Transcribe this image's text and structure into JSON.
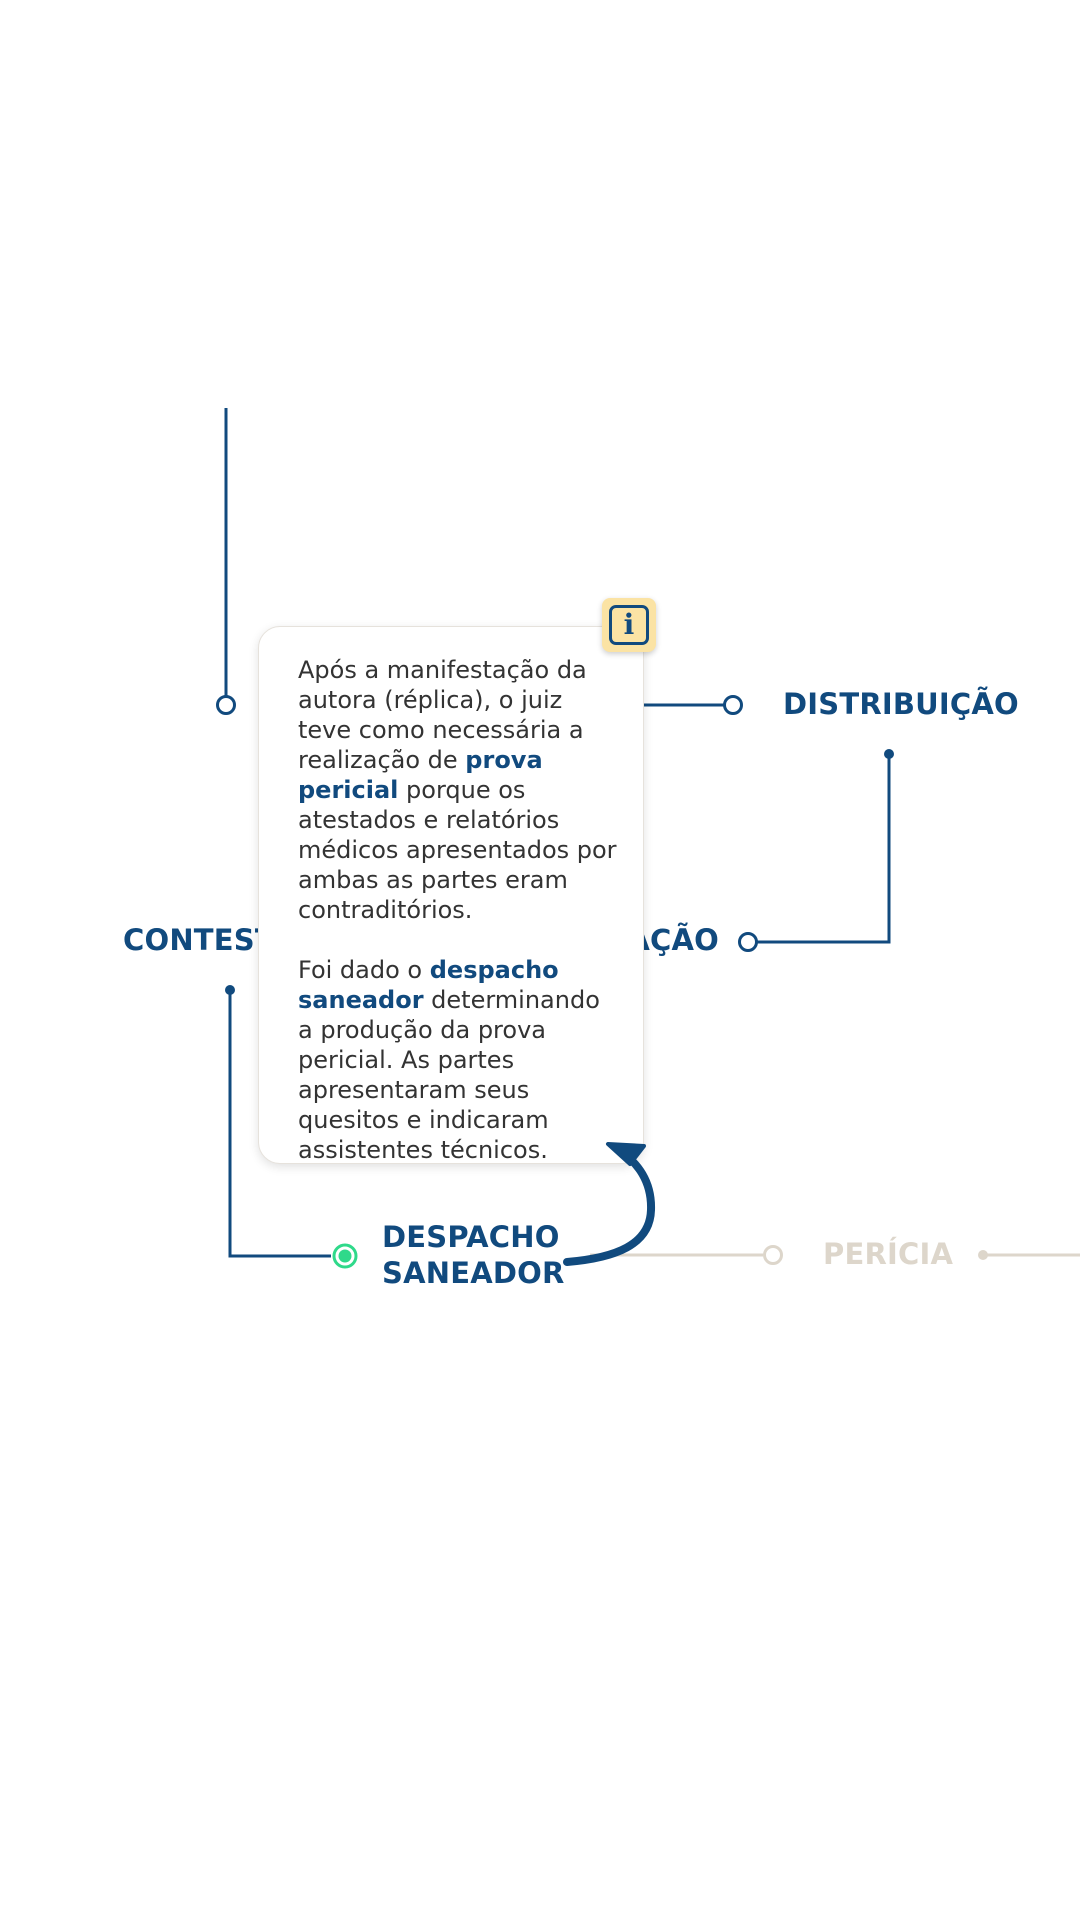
{
  "colors": {
    "primary": "#114a7e",
    "muted": "#ddd6cb",
    "active": "#2fd98a",
    "badge": "#fbe3a4",
    "text": "#333333"
  },
  "timeline": {
    "nodes": [
      {
        "id": "distribuicao",
        "label": "DISTRIBUIÇÃO",
        "state": "done"
      },
      {
        "id": "citacao",
        "label": "CITAÇÃO",
        "state": "done"
      },
      {
        "id": "contestacao",
        "label": "CONTESTAÇÃO",
        "state": "done"
      },
      {
        "id": "despacho-saneador",
        "label": "DESPACHO SANEADOR",
        "state": "active"
      },
      {
        "id": "pericia",
        "label": "PERÍCIA",
        "state": "pending"
      }
    ]
  },
  "tooltip": {
    "icon": "info-icon",
    "p1_before": "Após a manifestação da autora (réplica), o juiz teve como necessária a realização de ",
    "p1_bold": "prova pericial",
    "p1_after": " porque os atestados e relatórios médicos apresentados por ambas as partes eram contraditórios.",
    "p2_before": "Foi dado o ",
    "p2_bold": "despacho saneador",
    "p2_after": " determinando a produção da prova pericial. As partes apresentaram seus quesitos e indicaram assistentes técnicos."
  }
}
